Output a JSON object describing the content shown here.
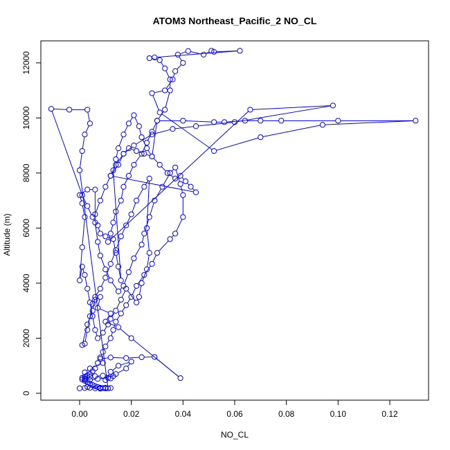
{
  "chart_data": {
    "type": "line",
    "title": "ATOM3 Northeast_Pacific_2 NO_CL",
    "xlabel": "NO_CL",
    "ylabel": "Altitude (m)",
    "xlim": [
      -0.015,
      0.135
    ],
    "ylim": [
      -250,
      12800
    ],
    "xticks": [
      0.0,
      0.02,
      0.04,
      0.06,
      0.08,
      0.1,
      0.12
    ],
    "xtick_labels": [
      "0.00",
      "0.02",
      "0.04",
      "0.06",
      "0.08",
      "0.10",
      "0.12"
    ],
    "yticks": [
      0,
      2000,
      4000,
      6000,
      8000,
      10000,
      12000
    ],
    "ytick_labels": [
      "0",
      "2000",
      "4000",
      "6000",
      "8000",
      "10000",
      "12000"
    ],
    "grid": false,
    "colors": {
      "series": "#0000ff",
      "axes": "#000000"
    },
    "series": [
      {
        "marker": "open-circle",
        "points": [
          [
            0.0,
            180
          ],
          [
            0.002,
            190
          ],
          [
            0.004,
            200
          ],
          [
            0.006,
            180
          ],
          [
            0.008,
            170
          ],
          [
            0.01,
            180
          ],
          [
            0.012,
            190
          ],
          [
            0.01,
            200
          ],
          [
            0.008,
            190
          ],
          [
            0.003,
            230
          ],
          [
            0.002,
            500
          ],
          [
            0.004,
            600
          ],
          [
            0.006,
            620
          ],
          [
            0.009,
            640
          ],
          [
            0.013,
            620
          ],
          [
            0.012,
            540
          ],
          [
            0.01,
            480
          ],
          [
            0.012,
            780
          ],
          [
            0.015,
            1000
          ],
          [
            0.02,
            1150
          ],
          [
            0.018,
            900
          ],
          [
            0.014,
            700
          ],
          [
            0.011,
            560
          ],
          [
            0.007,
            520
          ],
          [
            0.004,
            480
          ],
          [
            0.002,
            540
          ],
          [
            0.002,
            760
          ],
          [
            0.004,
            900
          ],
          [
            0.009,
            1100
          ],
          [
            0.008,
            1250
          ],
          [
            0.012,
            1300
          ],
          [
            0.018,
            1280
          ],
          [
            0.024,
            1310
          ],
          [
            0.029,
            1320
          ],
          [
            0.039,
            550
          ],
          [
            0.02,
            2000
          ],
          [
            0.015,
            2400
          ],
          [
            0.01,
            2600
          ],
          [
            0.012,
            2900
          ],
          [
            0.007,
            3100
          ],
          [
            0.008,
            3500
          ],
          [
            0.006,
            3400
          ],
          [
            0.005,
            3250
          ],
          [
            0.004,
            2800
          ],
          [
            0.003,
            2300
          ],
          [
            0.002,
            1800
          ],
          [
            0.001,
            1750
          ],
          [
            0.003,
            2500
          ],
          [
            0.005,
            3000
          ],
          [
            0.006,
            3500
          ],
          [
            0.008,
            3800
          ],
          [
            0.01,
            4200
          ],
          [
            0.012,
            4700
          ],
          [
            0.014,
            5200
          ],
          [
            0.016,
            5700
          ],
          [
            0.018,
            6100
          ],
          [
            0.02,
            6500
          ],
          [
            0.022,
            7000
          ],
          [
            0.025,
            7500
          ],
          [
            0.027,
            7800
          ],
          [
            0.026,
            6000
          ],
          [
            0.027,
            5100
          ],
          [
            0.026,
            4500
          ],
          [
            0.024,
            4000
          ],
          [
            0.023,
            3500
          ],
          [
            0.022,
            3300
          ],
          [
            0.018,
            3800
          ],
          [
            0.016,
            3400
          ],
          [
            0.014,
            3000
          ],
          [
            0.012,
            2700
          ],
          [
            0.011,
            2500
          ],
          [
            0.009,
            2200
          ],
          [
            0.007,
            2000
          ],
          [
            0.006,
            2300
          ],
          [
            0.005,
            2800
          ],
          [
            0.004,
            3300
          ],
          [
            0.003,
            3800
          ],
          [
            0.002,
            4300
          ],
          [
            0.001,
            4600
          ],
          [
            0.0,
            4100
          ],
          [
            0.001,
            5300
          ],
          [
            0.002,
            6400
          ],
          [
            0.001,
            6900
          ],
          [
            0.0,
            7200
          ],
          [
            0.003,
            7400
          ],
          [
            0.006,
            7400
          ],
          [
            0.006,
            6200
          ],
          [
            0.007,
            5500
          ],
          [
            0.008,
            5000
          ],
          [
            0.01,
            4500
          ],
          [
            0.012,
            4100
          ],
          [
            0.015,
            3700
          ],
          [
            0.017,
            3900
          ],
          [
            0.019,
            4400
          ],
          [
            0.021,
            4900
          ],
          [
            0.024,
            5400
          ],
          [
            0.025,
            5800
          ],
          [
            0.027,
            6400
          ],
          [
            0.029,
            7000
          ],
          [
            0.032,
            7500
          ],
          [
            0.035,
            8000
          ],
          [
            0.037,
            8200
          ],
          [
            0.039,
            7600
          ],
          [
            0.04,
            7200
          ],
          [
            0.04,
            6400
          ],
          [
            0.037,
            5800
          ],
          [
            0.035,
            5600
          ],
          [
            0.03,
            5100
          ],
          [
            0.028,
            4700
          ],
          [
            0.025,
            4300
          ],
          [
            0.022,
            3900
          ],
          [
            0.02,
            3500
          ],
          [
            0.018,
            3200
          ],
          [
            0.016,
            2900
          ],
          [
            0.014,
            2600
          ],
          [
            0.013,
            2300
          ],
          [
            0.012,
            2000
          ],
          [
            0.01,
            1700
          ],
          [
            0.009,
            1500
          ],
          [
            0.008,
            1300
          ],
          [
            0.007,
            1100
          ],
          [
            0.006,
            900
          ],
          [
            0.005,
            800
          ],
          [
            0.004,
            700
          ],
          [
            0.003,
            650
          ],
          [
            0.002,
            600
          ],
          [
            0.001,
            560
          ],
          [
            0.001,
            500
          ],
          [
            0.002,
            450
          ],
          [
            0.003,
            400
          ],
          [
            0.004,
            350
          ],
          [
            0.005,
            300
          ],
          [
            0.006,
            260
          ],
          [
            0.007,
            230
          ],
          [
            0.008,
            200
          ],
          [
            0.009,
            190
          ],
          [
            0.01,
            185
          ],
          [
            0.011,
            180
          ],
          [
            0.0,
            8100
          ],
          [
            0.001,
            8800
          ],
          [
            0.002,
            9400
          ],
          [
            0.004,
            9800
          ],
          [
            0.003,
            10300
          ],
          [
            -0.004,
            10300
          ],
          [
            -0.011,
            10330
          ],
          [
            0.001,
            7200
          ],
          [
            0.003,
            6800
          ],
          [
            0.005,
            6400
          ],
          [
            0.007,
            6100
          ],
          [
            0.008,
            5800
          ],
          [
            0.01,
            5700
          ],
          [
            0.013,
            5600
          ],
          [
            0.014,
            5100
          ],
          [
            0.015,
            4600
          ],
          [
            0.016,
            4100
          ],
          [
            0.013,
            8100
          ],
          [
            0.014,
            8500
          ],
          [
            0.015,
            8900
          ],
          [
            0.017,
            9400
          ],
          [
            0.019,
            9800
          ],
          [
            0.021,
            10100
          ],
          [
            0.023,
            9700
          ],
          [
            0.024,
            9300
          ],
          [
            0.026,
            8900
          ],
          [
            0.028,
            8600
          ],
          [
            0.031,
            8300
          ],
          [
            0.034,
            8000
          ],
          [
            0.037,
            7800
          ],
          [
            0.039,
            7900
          ],
          [
            0.041,
            7700
          ],
          [
            0.043,
            7500
          ],
          [
            0.045,
            7300
          ],
          [
            0.012,
            7900
          ],
          [
            0.015,
            8300
          ],
          [
            0.017,
            8700
          ],
          [
            0.019,
            8900
          ],
          [
            0.022,
            8800
          ],
          [
            0.025,
            8700
          ],
          [
            0.028,
            8600
          ],
          [
            0.03,
            9900
          ],
          [
            0.04,
            9900
          ],
          [
            0.052,
            9850
          ],
          [
            0.056,
            9850
          ],
          [
            0.064,
            9900
          ],
          [
            0.07,
            9900
          ],
          [
            0.078,
            9900
          ],
          [
            0.1,
            9900
          ],
          [
            0.13,
            9900
          ],
          [
            0.094,
            9750
          ],
          [
            0.07,
            9300
          ],
          [
            0.052,
            8800
          ],
          [
            0.031,
            10200
          ],
          [
            0.028,
            10900
          ],
          [
            0.033,
            11000
          ],
          [
            0.036,
            11400
          ],
          [
            0.037,
            11700
          ],
          [
            0.04,
            12000
          ],
          [
            0.038,
            12300
          ],
          [
            0.042,
            12430
          ],
          [
            0.048,
            12300
          ],
          [
            0.051,
            12440
          ],
          [
            0.052,
            12400
          ],
          [
            0.062,
            12440
          ],
          [
            0.029,
            12200
          ],
          [
            0.027,
            12170
          ],
          [
            0.031,
            12100
          ],
          [
            0.033,
            11800
          ],
          [
            0.035,
            11400
          ],
          [
            0.035,
            11000
          ],
          [
            0.033,
            10300
          ],
          [
            0.03,
            9900
          ],
          [
            0.028,
            9500
          ],
          [
            0.026,
            9100
          ],
          [
            0.024,
            8700
          ],
          [
            0.021,
            8300
          ],
          [
            0.019,
            7900
          ],
          [
            0.017,
            7500
          ],
          [
            0.016,
            7000
          ],
          [
            0.014,
            6600
          ],
          [
            0.013,
            6200
          ],
          [
            0.012,
            5800
          ],
          [
            0.011,
            5500
          ],
          [
            0.066,
            10300
          ],
          [
            0.098,
            10450
          ],
          [
            0.06,
            9850
          ],
          [
            0.045,
            9700
          ],
          [
            0.036,
            9600
          ],
          [
            0.028,
            9400
          ],
          [
            0.021,
            9000
          ],
          [
            0.017,
            8700
          ],
          [
            0.014,
            8300
          ],
          [
            0.012,
            7900
          ],
          [
            0.01,
            7500
          ],
          [
            0.008,
            7000
          ],
          [
            0.006,
            6500
          ]
        ]
      }
    ]
  }
}
